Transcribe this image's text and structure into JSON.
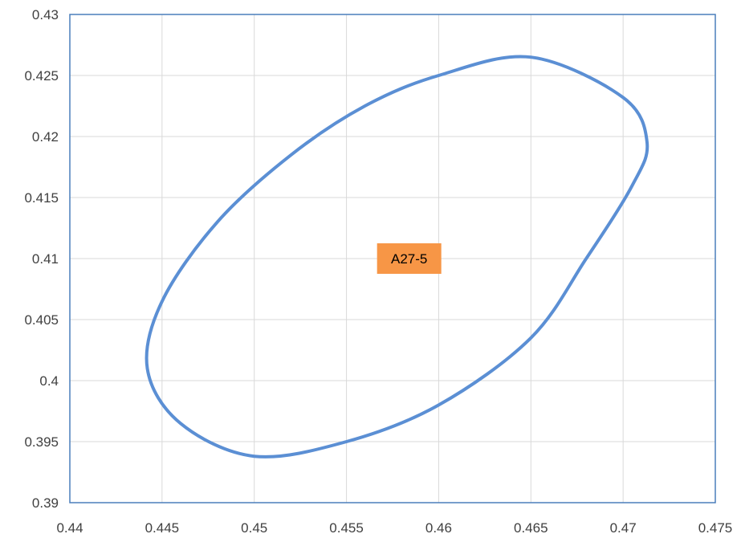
{
  "chart_data": {
    "type": "line",
    "title": "",
    "xlabel": "",
    "ylabel": "",
    "xlim": [
      0.44,
      0.475
    ],
    "ylim": [
      0.39,
      0.43
    ],
    "x_ticks": [
      0.44,
      0.445,
      0.45,
      0.455,
      0.46,
      0.465,
      0.47,
      0.475
    ],
    "y_ticks": [
      0.39,
      0.395,
      0.4,
      0.405,
      0.41,
      0.415,
      0.42,
      0.425,
      0.43
    ],
    "x_tick_labels": [
      "0.44",
      "0.445",
      "0.45",
      "0.455",
      "0.46",
      "0.465",
      "0.47",
      "0.475"
    ],
    "y_tick_labels": [
      "0.39",
      "0.395",
      "0.4",
      "0.405",
      "0.41",
      "0.415",
      "0.42",
      "0.425",
      "0.43"
    ],
    "grid": true,
    "legend": "none",
    "series": [
      {
        "color": "#5b8fd4",
        "x": [
          0.465,
          0.47,
          0.4713,
          0.4705,
          0.468,
          0.465,
          0.46,
          0.455,
          0.45,
          0.446,
          0.4442,
          0.445,
          0.448,
          0.452,
          0.456,
          0.46,
          0.465
        ],
        "y": [
          0.4265,
          0.4232,
          0.4195,
          0.416,
          0.41,
          0.4035,
          0.398,
          0.395,
          0.3938,
          0.3965,
          0.401,
          0.4065,
          0.413,
          0.4185,
          0.4225,
          0.425,
          0.4265
        ]
      }
    ],
    "annotations": [
      {
        "text": "A27-5",
        "x": 0.4584,
        "y": 0.41,
        "background": "#f79646"
      }
    ]
  }
}
